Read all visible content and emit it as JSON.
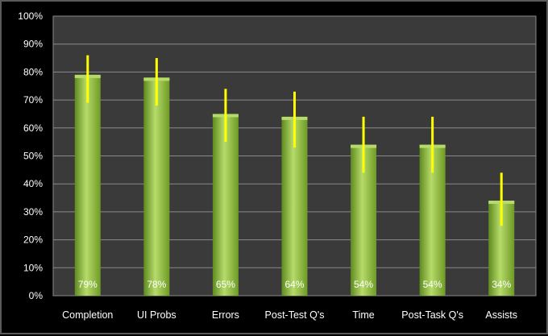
{
  "chart_data": {
    "type": "bar",
    "categories": [
      "Completion",
      "UI Probs",
      "Errors",
      "Post-Test Q's",
      "Time",
      "Post-Task Q's",
      "Assists"
    ],
    "series": [
      {
        "values": [
          79,
          78,
          65,
          64,
          54,
          54,
          34
        ],
        "value_labels": [
          "79%",
          "78%",
          "65%",
          "64%",
          "54%",
          "54%",
          "34%"
        ],
        "error_low": [
          69,
          68,
          55,
          53,
          44,
          44,
          25
        ],
        "error_high": [
          86,
          85,
          74,
          73,
          64,
          64,
          44
        ]
      }
    ],
    "y_ticks": [
      "0%",
      "10%",
      "20%",
      "30%",
      "40%",
      "50%",
      "60%",
      "70%",
      "80%",
      "90%",
      "100%"
    ],
    "ylim": [
      0,
      100
    ],
    "grid": true,
    "legend": "none",
    "title": "",
    "xlabel": "",
    "ylabel": ""
  },
  "colors": {
    "page_background": "#000000",
    "plot_background": "#3a3a3a",
    "gridline": "#8a8a8a",
    "axis_text": "#ffffff",
    "bar_light": "#b6db6a",
    "bar_mid": "#8fbf3f",
    "bar_dark": "#5f8a1f",
    "error_bar": "#ffff00",
    "value_label": "#ffffff"
  }
}
